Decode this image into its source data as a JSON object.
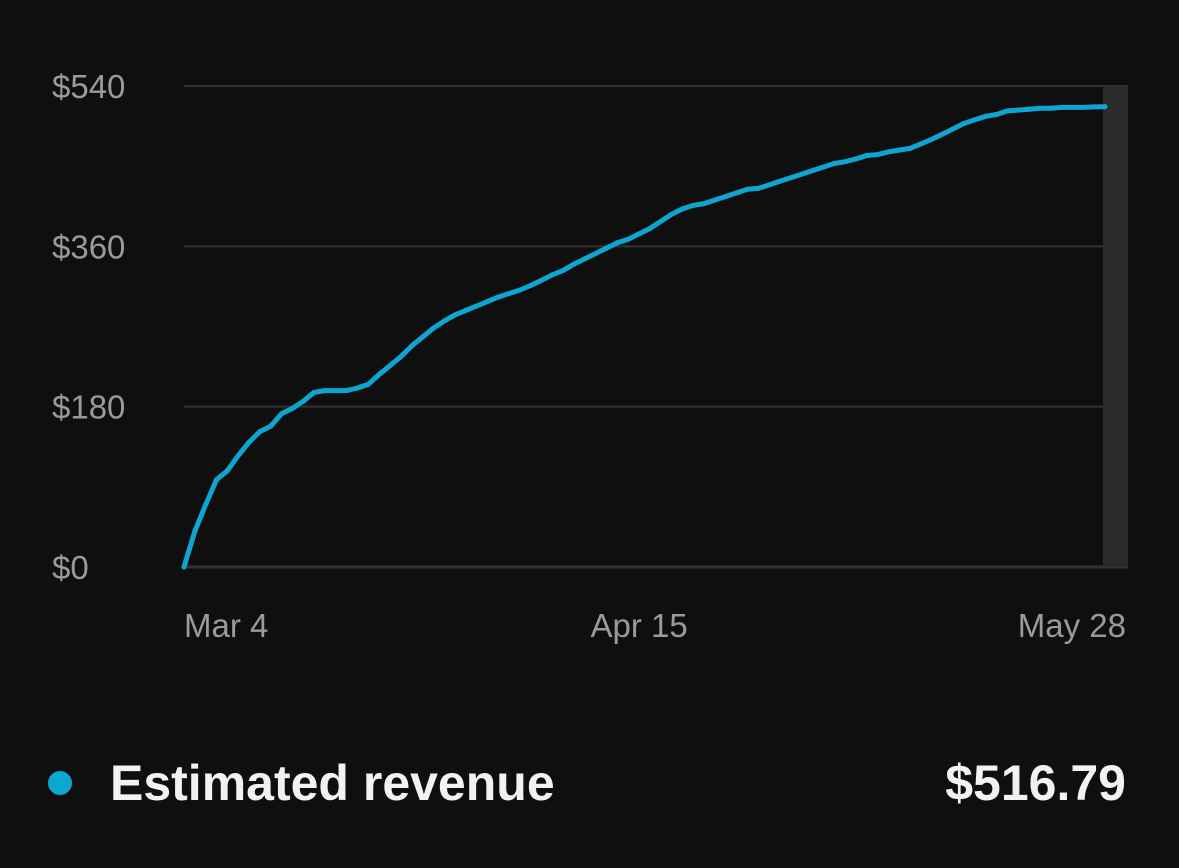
{
  "chart_data": {
    "type": "line",
    "x_axis_type": "date",
    "x_tick_labels": [
      "Mar 4",
      "Apr 15",
      "May 28"
    ],
    "y_tick_labels": [
      "$0",
      "$180",
      "$360",
      "$540"
    ],
    "ylim": [
      0,
      540
    ],
    "xlim": [
      "Mar 4",
      "May 28"
    ],
    "grid": "horizontal",
    "highlighted_category": "May 28",
    "series": [
      {
        "name": "Estimated revenue",
        "color": "#0ea5d0",
        "points": [
          [
            "Mar 4",
            0
          ],
          [
            "Mar 5",
            40
          ],
          [
            "Mar 6",
            70
          ],
          [
            "Mar 7",
            98
          ],
          [
            "Mar 8",
            108
          ],
          [
            "Mar 9",
            125
          ],
          [
            "Mar 10",
            140
          ],
          [
            "Mar 11",
            152
          ],
          [
            "Mar 12",
            158
          ],
          [
            "Mar 13",
            172
          ],
          [
            "Mar 14",
            178
          ],
          [
            "Mar 15",
            186
          ],
          [
            "Mar 16",
            196
          ],
          [
            "Mar 17",
            198
          ],
          [
            "Mar 18",
            198
          ],
          [
            "Mar 19",
            198
          ],
          [
            "Mar 20",
            201
          ],
          [
            "Mar 21",
            205
          ],
          [
            "Mar 22",
            216
          ],
          [
            "Mar 23",
            226
          ],
          [
            "Mar 24",
            236
          ],
          [
            "Mar 25",
            248
          ],
          [
            "Mar 26",
            258
          ],
          [
            "Mar 27",
            268
          ],
          [
            "Mar 28",
            276
          ],
          [
            "Mar 29",
            283
          ],
          [
            "Mar 30",
            288
          ],
          [
            "Mar 31",
            293
          ],
          [
            "Apr 1",
            298
          ],
          [
            "Apr 2",
            303
          ],
          [
            "Apr 3",
            307
          ],
          [
            "Apr 4",
            311
          ],
          [
            "Apr 5",
            316
          ],
          [
            "Apr 6",
            322
          ],
          [
            "Apr 7",
            328
          ],
          [
            "Apr 8",
            333
          ],
          [
            "Apr 9",
            340
          ],
          [
            "Apr 10",
            346
          ],
          [
            "Apr 11",
            352
          ],
          [
            "Apr 12",
            358
          ],
          [
            "Apr 13",
            364
          ],
          [
            "Apr 14",
            368
          ],
          [
            "Apr 15",
            374
          ],
          [
            "Apr 16",
            380
          ],
          [
            "Apr 17",
            388
          ],
          [
            "Apr 18",
            396
          ],
          [
            "Apr 19",
            402
          ],
          [
            "Apr 20",
            406
          ],
          [
            "Apr 21",
            408
          ],
          [
            "Apr 22",
            412
          ],
          [
            "Apr 23",
            416
          ],
          [
            "Apr 24",
            420
          ],
          [
            "Apr 25",
            424
          ],
          [
            "Apr 26",
            425
          ],
          [
            "Apr 27",
            429
          ],
          [
            "Apr 28",
            433
          ],
          [
            "Apr 29",
            437
          ],
          [
            "Apr 30",
            441
          ],
          [
            "May 1",
            445
          ],
          [
            "May 2",
            449
          ],
          [
            "May 3",
            453
          ],
          [
            "May 4",
            455
          ],
          [
            "May 5",
            458
          ],
          [
            "May 6",
            462
          ],
          [
            "May 7",
            463
          ],
          [
            "May 8",
            466
          ],
          [
            "May 9",
            468
          ],
          [
            "May 10",
            470
          ],
          [
            "May 11",
            475
          ],
          [
            "May 12",
            480
          ],
          [
            "May 13",
            486
          ],
          [
            "May 14",
            492
          ],
          [
            "May 15",
            498
          ],
          [
            "May 16",
            502
          ],
          [
            "May 17",
            506
          ],
          [
            "May 18",
            508
          ],
          [
            "May 19",
            512
          ],
          [
            "May 20",
            513
          ],
          [
            "May 21",
            514
          ],
          [
            "May 22",
            515
          ],
          [
            "May 23",
            515
          ],
          [
            "May 24",
            516
          ],
          [
            "May 25",
            516
          ],
          [
            "May 26",
            516
          ],
          [
            "May 27",
            516.5
          ],
          [
            "May 28",
            516.79
          ]
        ]
      }
    ]
  },
  "legend": {
    "label": "Estimated revenue",
    "value": "$516.79",
    "color": "#0ea5d0"
  },
  "colors": {
    "background": "#0f0f0f",
    "grid": "#333333",
    "tick_text": "#9a9a9a",
    "highlight_band": "#2a2a2a"
  }
}
